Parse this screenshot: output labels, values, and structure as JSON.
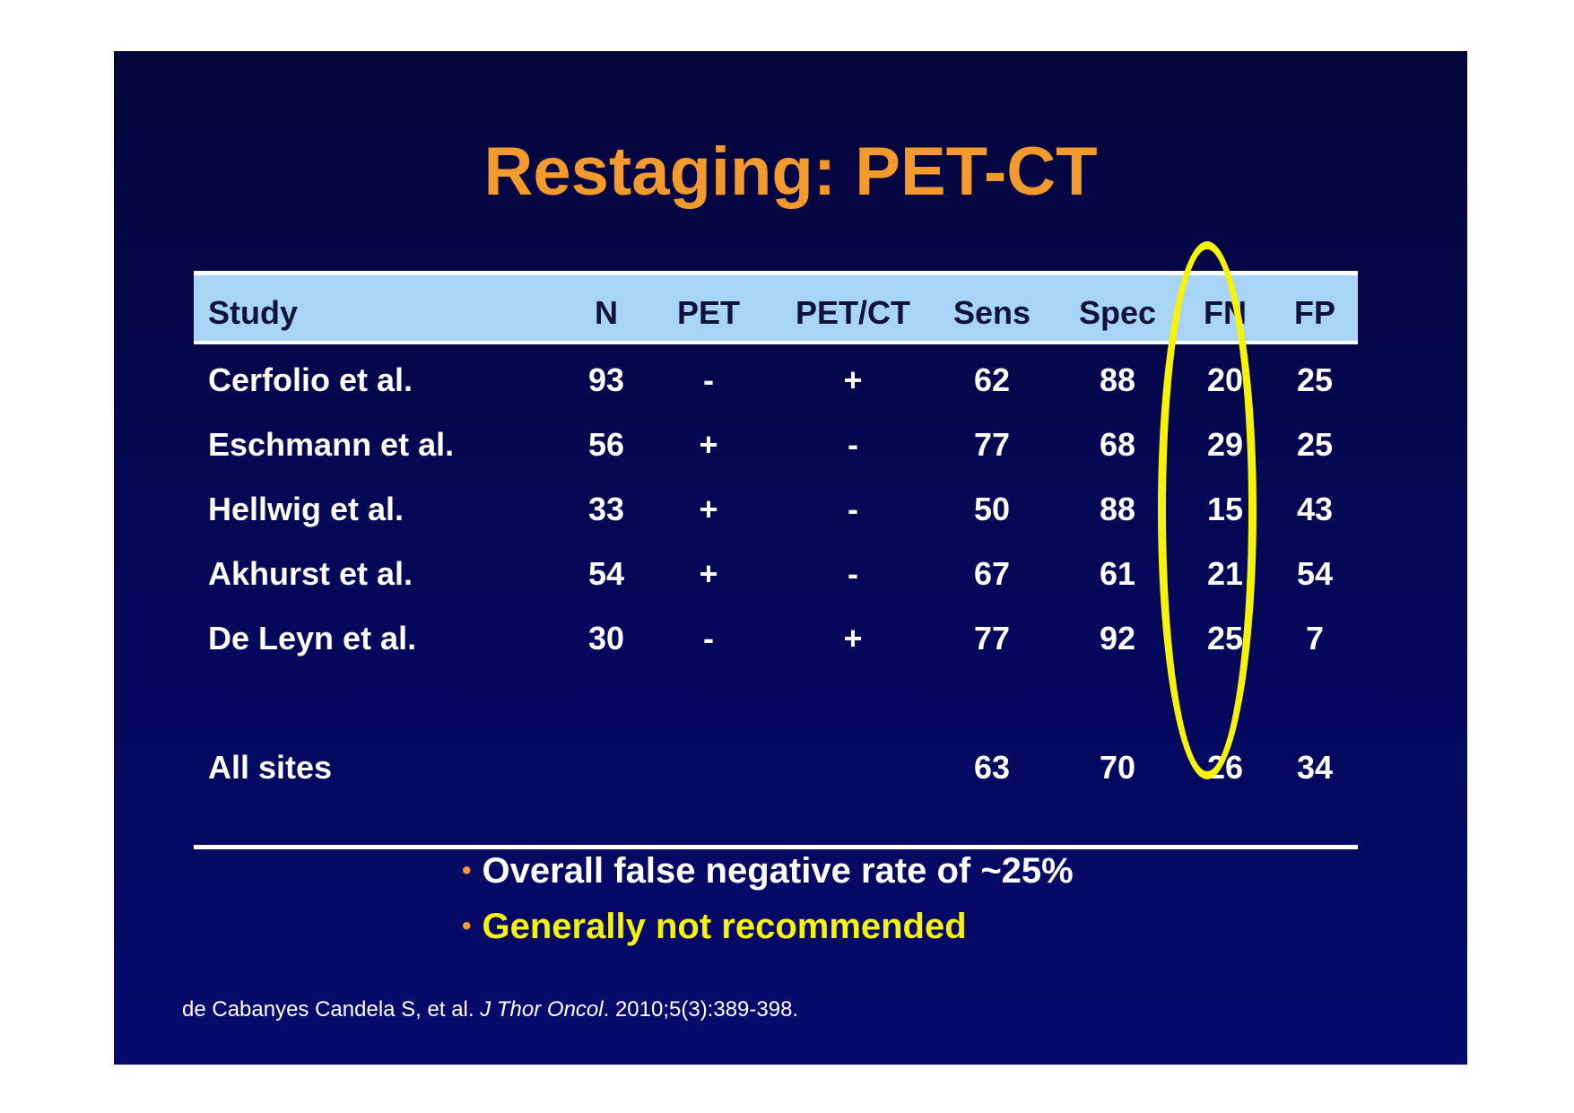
{
  "title": "Restaging: PET-CT",
  "table": {
    "headers": [
      "Study",
      "N",
      "PET",
      "PET/CT",
      "Sens",
      "Spec",
      "FN",
      "FP"
    ],
    "rows": [
      [
        "Cerfolio et al.",
        "93",
        "-",
        "+",
        "62",
        "88",
        "20",
        "25"
      ],
      [
        "Eschmann et al.",
        "56",
        "+",
        "-",
        "77",
        "68",
        "29",
        "25"
      ],
      [
        "Hellwig et al.",
        "33",
        "+",
        "-",
        "50",
        "88",
        "15",
        "43"
      ],
      [
        "Akhurst et al.",
        "54",
        "+",
        "-",
        "67",
        "61",
        "21",
        "54"
      ],
      [
        "De Leyn et al.",
        "30",
        "-",
        "+",
        "77",
        "92",
        "25",
        "7"
      ]
    ],
    "summary": [
      "All sites",
      "",
      "",
      "",
      "63",
      "70",
      "26",
      "34"
    ]
  },
  "bullets": [
    "Overall false negative rate of ~25%",
    "Generally not recommended"
  ],
  "citation": {
    "authors": "de Cabanyes Candela S, et al. ",
    "journal": "J Thor Oncol",
    "rest": ". 2010;5(3):389-398."
  },
  "colors": {
    "background": "#05085a",
    "title": "#f39a2e",
    "header_band": "#a8d4f8",
    "highlight": "#f6f20a"
  }
}
